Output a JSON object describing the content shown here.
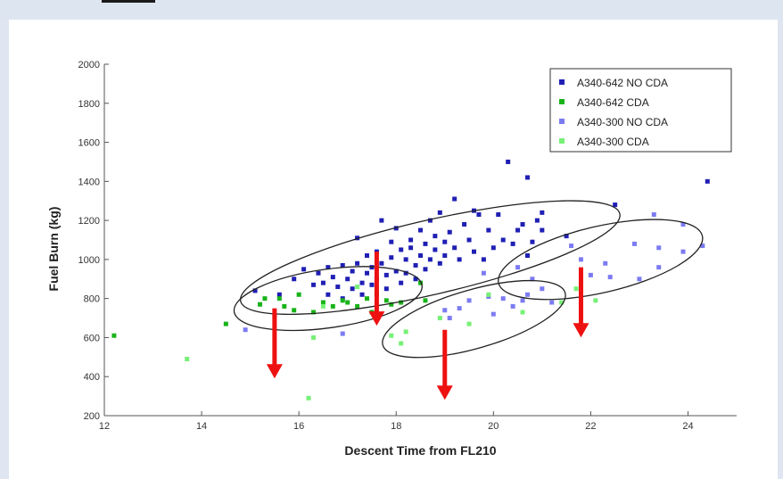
{
  "chart_data": {
    "type": "scatter",
    "title": "",
    "xlabel": "Descent Time from FL210",
    "ylabel": "Fuel Burn (kg)",
    "xlim": [
      12,
      25
    ],
    "ylim": [
      200,
      2000
    ],
    "x_ticks": [
      12,
      14,
      16,
      18,
      20,
      22,
      24
    ],
    "y_ticks": [
      200,
      400,
      600,
      800,
      1000,
      1200,
      1400,
      1600,
      1800,
      2000
    ],
    "grid": false,
    "legend_position": "top-right",
    "series": [
      {
        "name": "A340-642 NO CDA",
        "color": "#1f1fb4",
        "points": [
          [
            15.1,
            840
          ],
          [
            15.6,
            820
          ],
          [
            15.9,
            900
          ],
          [
            16.1,
            950
          ],
          [
            16.3,
            870
          ],
          [
            16.4,
            930
          ],
          [
            16.5,
            880
          ],
          [
            16.6,
            960
          ],
          [
            16.6,
            820
          ],
          [
            16.7,
            910
          ],
          [
            16.8,
            860
          ],
          [
            16.9,
            970
          ],
          [
            16.9,
            800
          ],
          [
            17.0,
            900
          ],
          [
            17.1,
            940
          ],
          [
            17.1,
            850
          ],
          [
            17.2,
            1110
          ],
          [
            17.2,
            980
          ],
          [
            17.3,
            880
          ],
          [
            17.3,
            820
          ],
          [
            17.4,
            930
          ],
          [
            17.4,
            1020
          ],
          [
            17.5,
            960
          ],
          [
            17.5,
            870
          ],
          [
            17.6,
            1040
          ],
          [
            17.6,
            900
          ],
          [
            17.7,
            1200
          ],
          [
            17.7,
            980
          ],
          [
            17.8,
            920
          ],
          [
            17.8,
            850
          ],
          [
            17.9,
            1090
          ],
          [
            17.9,
            1010
          ],
          [
            18.0,
            940
          ],
          [
            18.0,
            1160
          ],
          [
            18.1,
            1050
          ],
          [
            18.1,
            880
          ],
          [
            18.2,
            1000
          ],
          [
            18.2,
            930
          ],
          [
            18.3,
            1100
          ],
          [
            18.3,
            1060
          ],
          [
            18.4,
            970
          ],
          [
            18.4,
            900
          ],
          [
            18.5,
            1150
          ],
          [
            18.5,
            1020
          ],
          [
            18.6,
            1080
          ],
          [
            18.6,
            950
          ],
          [
            18.7,
            1200
          ],
          [
            18.7,
            1000
          ],
          [
            18.8,
            1120
          ],
          [
            18.8,
            1050
          ],
          [
            18.9,
            980
          ],
          [
            18.9,
            1240
          ],
          [
            19.0,
            1090
          ],
          [
            19.0,
            1020
          ],
          [
            19.1,
            1140
          ],
          [
            19.2,
            1310
          ],
          [
            19.2,
            1060
          ],
          [
            19.3,
            1000
          ],
          [
            19.4,
            1180
          ],
          [
            19.5,
            1100
          ],
          [
            19.6,
            1250
          ],
          [
            19.6,
            1040
          ],
          [
            19.7,
            1230
          ],
          [
            19.8,
            1000
          ],
          [
            19.9,
            1150
          ],
          [
            20.0,
            1060
          ],
          [
            20.1,
            1230
          ],
          [
            20.2,
            1100
          ],
          [
            20.3,
            1500
          ],
          [
            20.4,
            1080
          ],
          [
            20.5,
            1150
          ],
          [
            20.6,
            1180
          ],
          [
            20.7,
            1420
          ],
          [
            20.7,
            1020
          ],
          [
            20.8,
            1090
          ],
          [
            20.9,
            1200
          ],
          [
            21.0,
            1240
          ],
          [
            21.0,
            1150
          ],
          [
            21.5,
            1120
          ],
          [
            22.5,
            1280
          ],
          [
            24.4,
            1400
          ]
        ]
      },
      {
        "name": "A340-642 CDA",
        "color": "#19b319",
        "points": [
          [
            12.2,
            610
          ],
          [
            14.5,
            670
          ],
          [
            15.2,
            770
          ],
          [
            15.3,
            800
          ],
          [
            15.5,
            710
          ],
          [
            15.6,
            800
          ],
          [
            15.7,
            760
          ],
          [
            15.9,
            740
          ],
          [
            16.0,
            820
          ],
          [
            16.3,
            730
          ],
          [
            16.5,
            780
          ],
          [
            16.7,
            760
          ],
          [
            16.9,
            790
          ],
          [
            17.0,
            780
          ],
          [
            17.2,
            760
          ],
          [
            17.4,
            800
          ],
          [
            17.5,
            730
          ],
          [
            17.6,
            820
          ],
          [
            17.8,
            790
          ],
          [
            17.9,
            770
          ],
          [
            18.1,
            780
          ],
          [
            18.5,
            880
          ],
          [
            18.6,
            790
          ]
        ]
      },
      {
        "name": "A340-300 NO CDA",
        "color": "#7b7bf2",
        "points": [
          [
            14.9,
            640
          ],
          [
            16.9,
            620
          ],
          [
            19.0,
            740
          ],
          [
            19.1,
            700
          ],
          [
            19.3,
            750
          ],
          [
            19.5,
            790
          ],
          [
            19.8,
            930
          ],
          [
            19.9,
            810
          ],
          [
            20.0,
            720
          ],
          [
            20.2,
            800
          ],
          [
            20.4,
            760
          ],
          [
            20.5,
            960
          ],
          [
            20.6,
            790
          ],
          [
            20.7,
            820
          ],
          [
            20.8,
            900
          ],
          [
            21.0,
            850
          ],
          [
            21.2,
            780
          ],
          [
            21.6,
            1070
          ],
          [
            21.8,
            1000
          ],
          [
            22.0,
            920
          ],
          [
            22.3,
            980
          ],
          [
            22.4,
            910
          ],
          [
            22.9,
            1080
          ],
          [
            23.0,
            900
          ],
          [
            23.3,
            1230
          ],
          [
            23.4,
            1060
          ],
          [
            23.4,
            960
          ],
          [
            23.9,
            1040
          ],
          [
            23.9,
            1180
          ],
          [
            24.3,
            1070
          ]
        ]
      },
      {
        "name": "A340-300 CDA",
        "color": "#77f077",
        "points": [
          [
            13.7,
            490
          ],
          [
            16.2,
            290
          ],
          [
            16.3,
            600
          ],
          [
            16.5,
            760
          ],
          [
            17.2,
            860
          ],
          [
            17.6,
            840
          ],
          [
            17.9,
            610
          ],
          [
            18.1,
            570
          ],
          [
            18.2,
            630
          ],
          [
            18.9,
            700
          ],
          [
            19.5,
            670
          ],
          [
            19.9,
            820
          ],
          [
            20.6,
            730
          ],
          [
            21.4,
            780
          ],
          [
            21.7,
            850
          ],
          [
            22.1,
            790
          ]
        ]
      }
    ],
    "annotations": {
      "ellipses": [
        {
          "cx": 16.6,
          "cy": 800,
          "rx": 1.95,
          "ry": 150,
          "angle_deg": -8
        },
        {
          "cx": 18.7,
          "cy": 1010,
          "rx": 4.0,
          "ry": 190,
          "angle_deg": -13
        },
        {
          "cx": 19.6,
          "cy": 695,
          "rx": 1.95,
          "ry": 150,
          "angle_deg": -16
        },
        {
          "cx": 22.2,
          "cy": 1000,
          "rx": 2.15,
          "ry": 170,
          "angle_deg": -13
        }
      ],
      "arrows": [
        {
          "x": 15.5,
          "y_from": 750,
          "y_to": 400,
          "color": "#ee1111"
        },
        {
          "x": 17.6,
          "y_from": 1040,
          "y_to": 670,
          "color": "#ee1111"
        },
        {
          "x": 19.0,
          "y_from": 640,
          "y_to": 290,
          "color": "#ee1111"
        },
        {
          "x": 21.8,
          "y_from": 960,
          "y_to": 610,
          "color": "#ee1111"
        }
      ]
    }
  }
}
